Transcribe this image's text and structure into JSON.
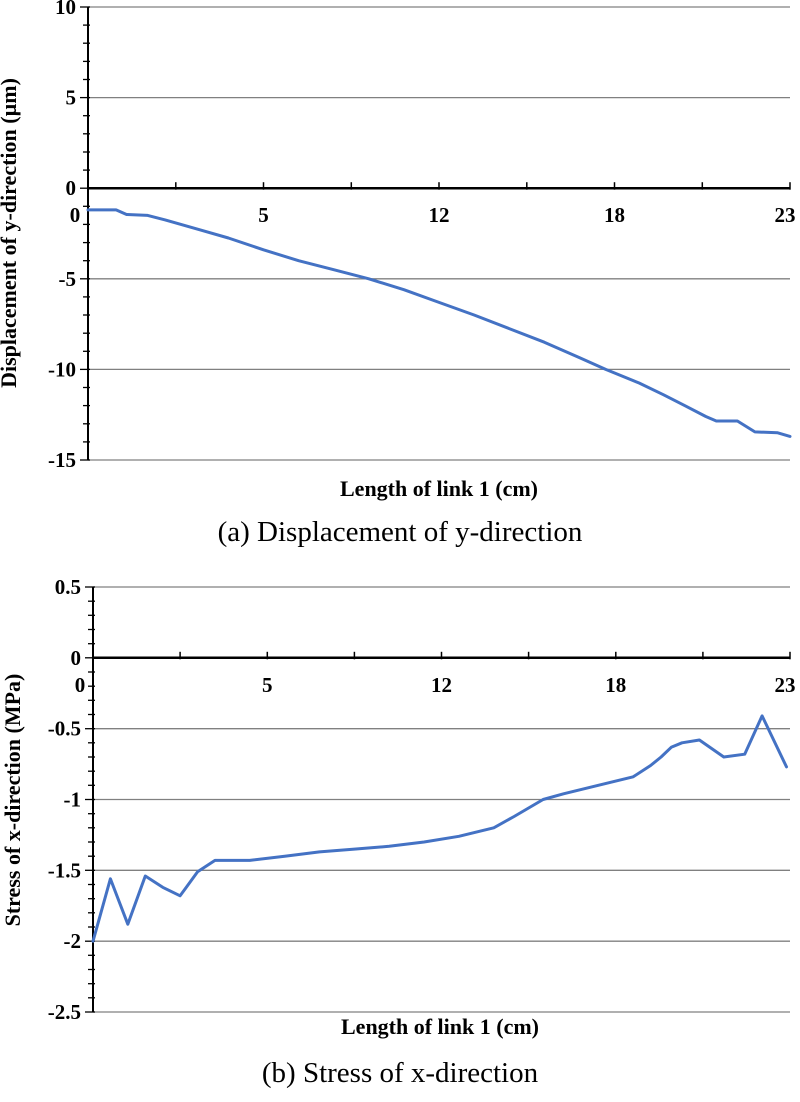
{
  "chart_data": [
    {
      "type": "line",
      "panel": "a",
      "caption": "(a) Displacement of y-direction",
      "xlabel": "Length of link 1 (cm)",
      "ylabel": "Displacement of y-direction (µm)",
      "x_tick_labels": [
        0,
        5,
        12,
        18,
        23
      ],
      "y_ticks": [
        10,
        5,
        0,
        -5,
        -10,
        -15
      ],
      "ylim": [
        -15,
        10
      ],
      "y_minor_step": 1,
      "grid": "horizontal",
      "legend": "none",
      "line_color": "#4472C4",
      "axis_color": "#000000",
      "grid_color": "#808080",
      "points": [
        [
          0,
          -1.2
        ],
        [
          0.8,
          -1.2
        ],
        [
          1.1,
          -1.45
        ],
        [
          1.7,
          -1.5
        ],
        [
          2.2,
          -1.75
        ],
        [
          3.2,
          -2.3
        ],
        [
          4.0,
          -2.75
        ],
        [
          5.0,
          -3.4
        ],
        [
          6.4,
          -4.0
        ],
        [
          7.8,
          -4.5
        ],
        [
          9.2,
          -5.0
        ],
        [
          10.6,
          -5.6
        ],
        [
          12.0,
          -6.3
        ],
        [
          13.2,
          -7.0
        ],
        [
          14.4,
          -7.75
        ],
        [
          15.6,
          -8.5
        ],
        [
          16.8,
          -9.35
        ],
        [
          17.7,
          -10.0
        ],
        [
          18.7,
          -10.75
        ],
        [
          19.4,
          -11.4
        ],
        [
          20.0,
          -12.0
        ],
        [
          20.6,
          -12.6
        ],
        [
          20.9,
          -12.85
        ],
        [
          21.5,
          -12.85
        ],
        [
          22.0,
          -13.45
        ],
        [
          22.65,
          -13.5
        ],
        [
          23,
          -13.7
        ]
      ]
    },
    {
      "type": "line",
      "panel": "b",
      "caption": "(b) Stress of x-direction",
      "xlabel": "Length of link 1 (cm)",
      "ylabel": "Stress of x-direction (MPa)",
      "x_tick_labels": [
        0,
        5,
        12,
        18,
        23
      ],
      "y_ticks": [
        0.5,
        0,
        -0.5,
        -1,
        -1.5,
        -2,
        -2.5
      ],
      "ylim": [
        -2.5,
        0.5
      ],
      "y_minor_step": 0.1,
      "grid": "horizontal",
      "legend": "none",
      "line_color": "#4472C4",
      "axis_color": "#000000",
      "grid_color": "#808080",
      "points": [
        [
          0,
          -2.0
        ],
        [
          0.5,
          -1.56
        ],
        [
          1.0,
          -1.88
        ],
        [
          1.5,
          -1.54
        ],
        [
          2.0,
          -1.62
        ],
        [
          2.5,
          -1.68
        ],
        [
          3.0,
          -1.51
        ],
        [
          3.5,
          -1.43
        ],
        [
          4.5,
          -1.43
        ],
        [
          5.7,
          -1.4
        ],
        [
          7.1,
          -1.37
        ],
        [
          8.5,
          -1.35
        ],
        [
          9.9,
          -1.33
        ],
        [
          11.3,
          -1.3
        ],
        [
          12.6,
          -1.26
        ],
        [
          13.8,
          -1.2
        ],
        [
          14.5,
          -1.12
        ],
        [
          15.5,
          -1.0
        ],
        [
          16.2,
          -0.96
        ],
        [
          17.4,
          -0.9
        ],
        [
          18.5,
          -0.84
        ],
        [
          19.0,
          -0.76
        ],
        [
          19.3,
          -0.7
        ],
        [
          19.6,
          -0.63
        ],
        [
          19.9,
          -0.6
        ],
        [
          20.4,
          -0.58
        ],
        [
          21.1,
          -0.7
        ],
        [
          21.7,
          -0.68
        ],
        [
          22.2,
          -0.41
        ],
        [
          22.9,
          -0.77
        ]
      ]
    }
  ]
}
